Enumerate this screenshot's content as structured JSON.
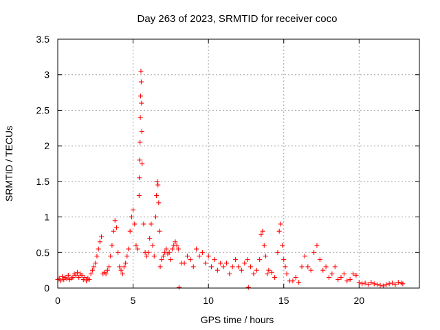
{
  "chart_data": {
    "type": "scatter",
    "title": "Day 263 of 2023, SRMTID for receiver coco",
    "xlabel": "GPS time / hours",
    "ylabel": "SRMTID / TECUs",
    "xlim": [
      0,
      24
    ],
    "ylim": [
      0,
      3.5
    ],
    "xticks": [
      0,
      5,
      10,
      15,
      20
    ],
    "xtick_labels": [
      "0",
      "5",
      "10",
      "15",
      "20"
    ],
    "yticks": [
      0,
      0.5,
      1,
      1.5,
      2,
      2.5,
      3,
      3.5
    ],
    "ytick_labels": [
      "0",
      "0.5",
      "1",
      "1.5",
      "2",
      "2.5",
      "3",
      "3.5"
    ],
    "grid": true,
    "marker": "+",
    "marker_color": "#ff0000",
    "series": [
      {
        "name": "SRMTID",
        "x": [
          0.0,
          0.1,
          0.2,
          0.3,
          0.4,
          0.5,
          0.6,
          0.7,
          0.8,
          0.9,
          1.0,
          1.1,
          1.2,
          1.3,
          1.4,
          1.5,
          1.6,
          1.7,
          1.8,
          1.9,
          2.0,
          2.1,
          2.2,
          2.3,
          2.4,
          2.5,
          2.6,
          2.7,
          2.8,
          2.9,
          3.0,
          3.1,
          3.2,
          3.3,
          3.4,
          3.5,
          3.6,
          3.7,
          3.8,
          3.9,
          4.0,
          4.1,
          4.2,
          4.3,
          4.4,
          4.5,
          4.6,
          4.7,
          4.8,
          4.9,
          5.0,
          5.1,
          5.2,
          5.3,
          5.4,
          5.42,
          5.44,
          5.46,
          5.48,
          5.5,
          5.52,
          5.54,
          5.56,
          5.58,
          5.6,
          5.7,
          5.8,
          5.9,
          6.0,
          6.1,
          6.2,
          6.3,
          6.4,
          6.5,
          6.55,
          6.6,
          6.65,
          6.7,
          6.75,
          6.8,
          6.9,
          7.0,
          7.1,
          7.2,
          7.3,
          7.4,
          7.5,
          7.6,
          7.7,
          7.8,
          7.9,
          8.0,
          8.05,
          8.2,
          8.4,
          8.6,
          8.8,
          9.0,
          9.2,
          9.4,
          9.6,
          9.8,
          10.0,
          10.2,
          10.4,
          10.6,
          10.8,
          11.0,
          11.2,
          11.4,
          11.6,
          11.8,
          12.0,
          12.2,
          12.4,
          12.6,
          12.65,
          12.8,
          13.0,
          13.2,
          13.4,
          13.5,
          13.6,
          13.7,
          13.8,
          13.9,
          14.0,
          14.2,
          14.4,
          14.6,
          14.7,
          14.8,
          14.9,
          15.0,
          15.1,
          15.2,
          15.4,
          15.6,
          15.8,
          16.0,
          16.2,
          16.4,
          16.6,
          16.8,
          17.0,
          17.2,
          17.4,
          17.6,
          17.8,
          18.0,
          18.2,
          18.4,
          18.6,
          18.8,
          19.0,
          19.2,
          19.4,
          19.6,
          19.8,
          20.0,
          20.2,
          20.4,
          20.6,
          20.8,
          21.0,
          21.2,
          21.4,
          21.6,
          21.8,
          22.0,
          22.2,
          22.4,
          22.6,
          22.8,
          22.9
        ],
        "y": [
          0.12,
          0.14,
          0.1,
          0.16,
          0.12,
          0.15,
          0.13,
          0.18,
          0.12,
          0.14,
          0.15,
          0.2,
          0.18,
          0.22,
          0.15,
          0.2,
          0.18,
          0.12,
          0.15,
          0.1,
          0.14,
          0.12,
          0.2,
          0.25,
          0.3,
          0.35,
          0.45,
          0.55,
          0.65,
          0.72,
          0.2,
          0.22,
          0.2,
          0.25,
          0.3,
          0.45,
          0.6,
          0.8,
          0.95,
          0.85,
          0.5,
          0.3,
          0.25,
          0.2,
          0.3,
          0.35,
          0.45,
          0.55,
          0.8,
          1.0,
          1.1,
          0.9,
          0.6,
          0.55,
          1.3,
          1.55,
          1.8,
          2.05,
          2.4,
          2.7,
          3.05,
          2.9,
          2.6,
          2.2,
          1.75,
          0.9,
          0.5,
          0.45,
          0.5,
          0.7,
          0.9,
          0.6,
          0.45,
          1.0,
          1.3,
          1.5,
          1.45,
          1.2,
          0.8,
          0.3,
          0.4,
          0.45,
          0.5,
          0.55,
          0.48,
          0.5,
          0.4,
          0.55,
          0.6,
          0.65,
          0.6,
          0.55,
          0.01,
          0.35,
          0.35,
          0.45,
          0.4,
          0.3,
          0.55,
          0.45,
          0.5,
          0.35,
          0.45,
          0.3,
          0.4,
          0.25,
          0.35,
          0.3,
          0.35,
          0.2,
          0.3,
          0.4,
          0.3,
          0.25,
          0.35,
          0.4,
          0.01,
          0.3,
          0.2,
          0.25,
          0.4,
          0.75,
          0.8,
          0.6,
          0.45,
          0.2,
          0.25,
          0.22,
          0.15,
          0.5,
          0.8,
          0.9,
          0.6,
          0.4,
          0.3,
          0.2,
          0.1,
          0.1,
          0.15,
          0.08,
          0.3,
          0.45,
          0.3,
          0.25,
          0.5,
          0.6,
          0.4,
          0.25,
          0.3,
          0.15,
          0.2,
          0.3,
          0.12,
          0.15,
          0.2,
          0.1,
          0.12,
          0.2,
          0.18,
          0.08,
          0.06,
          0.07,
          0.05,
          0.08,
          0.06,
          0.05,
          0.04,
          0.03,
          0.05,
          0.06,
          0.07,
          0.05,
          0.08,
          0.07,
          0.06
        ]
      }
    ]
  }
}
